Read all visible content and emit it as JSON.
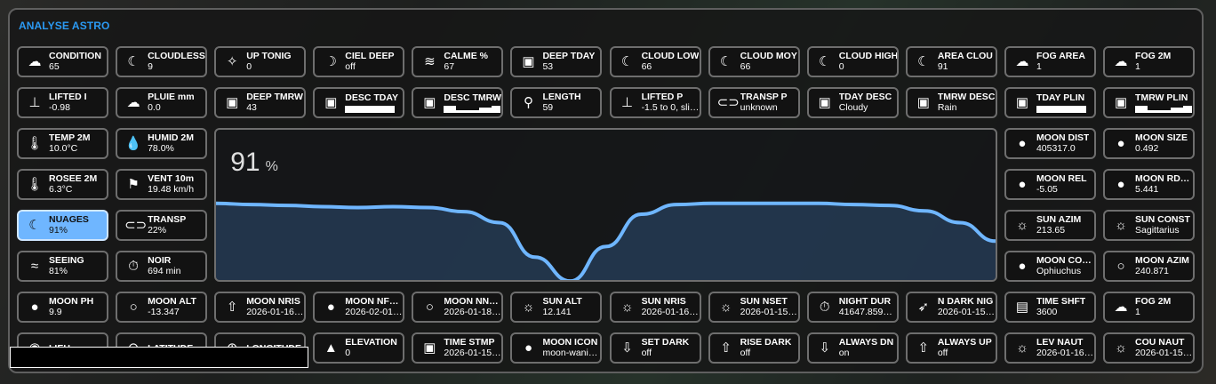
{
  "card": {
    "title": "ANALYSE ASTRO"
  },
  "colors": {
    "accent": "#2b9af3",
    "active_tile": "#6fb6ff",
    "line": "#6fb6ff"
  },
  "tiles": [
    {
      "label": "CONDITION",
      "value": "65",
      "icon": "cloud-snow-icon"
    },
    {
      "label": "CLOUDLESS",
      "value": "9",
      "icon": "night-cloud-icon"
    },
    {
      "label": "UP TONIG",
      "value": "0",
      "icon": "sparkles-icon"
    },
    {
      "label": "CIEL DEEP",
      "value": "off",
      "icon": "moon-stars-icon"
    },
    {
      "label": "CALME %",
      "value": "67",
      "icon": "wind-icon"
    },
    {
      "label": "DEEP TDAY",
      "value": "53",
      "icon": "calendar-star-icon"
    },
    {
      "label": "CLOUD LOW",
      "value": "66",
      "icon": "night-cloud-icon"
    },
    {
      "label": "CLOUD MOY",
      "value": "66",
      "icon": "night-cloud-icon"
    },
    {
      "label": "CLOUD HIGH",
      "value": "0",
      "icon": "night-cloud-icon"
    },
    {
      "label": "AREA CLOU",
      "value": "91",
      "icon": "night-cloud-icon"
    },
    {
      "label": "FOG AREA",
      "value": "1",
      "icon": "fog-icon"
    },
    {
      "label": "FOG 2M",
      "value": "1",
      "icon": "fog-icon"
    },
    {
      "label": "LIFTED I",
      "value": "-0.98",
      "icon": "arrow-up-bar-icon"
    },
    {
      "label": "PLUIE mm",
      "value": "0.0",
      "icon": "cloud-snow-icon"
    },
    {
      "label": "DEEP TMRW",
      "value": "43",
      "icon": "calendar-star-icon"
    },
    {
      "label": "DESC TDAY",
      "value": "",
      "icon": "calendar-star-icon",
      "timeline": "full"
    },
    {
      "label": "DESC TMRW",
      "value": "",
      "icon": "calendar-star-icon",
      "timeline": "mixed"
    },
    {
      "label": "LENGTH",
      "value": "59",
      "icon": "map-marker-path-icon"
    },
    {
      "label": "LIFTED P",
      "value": "-1.5 to 0, sli…",
      "icon": "arrow-up-bar-icon"
    },
    {
      "label": "TRANSP P",
      "value": "unknown",
      "icon": "goggles-icon"
    },
    {
      "label": "TDAY DESC",
      "value": "Cloudy",
      "icon": "calendar-star-icon"
    },
    {
      "label": "TMRW DESC",
      "value": "Rain",
      "icon": "calendar-star-icon"
    },
    {
      "label": "TDAY PLIN",
      "value": "",
      "icon": "calendar-star-icon",
      "timeline": "full"
    },
    {
      "label": "TMRW PLIN",
      "value": "",
      "icon": "calendar-star-icon",
      "timeline": "mixed"
    },
    {
      "label": "TEMP 2M",
      "value": "10.0°C",
      "icon": "thermometer-icon"
    },
    {
      "label": "HUMID 2M",
      "value": "78.0%",
      "icon": "water-percent-icon"
    },
    {
      "label": "MOON DIST",
      "value": "405317.0",
      "icon": "moon-full-icon"
    },
    {
      "label": "MOON SIZE",
      "value": "0.492",
      "icon": "moon-full-icon"
    },
    {
      "label": "ROSEE 2M",
      "value": "6.3°C",
      "icon": "thermometer-icon"
    },
    {
      "label": "VENT 10m",
      "value": "19.48 km/h",
      "icon": "windsock-icon"
    },
    {
      "label": "MOON REL",
      "value": "-5.05",
      "icon": "moon-full-icon"
    },
    {
      "label": "MOON RD…",
      "value": "5.441",
      "icon": "moon-full-icon"
    },
    {
      "label": "NUAGES",
      "value": "91%",
      "icon": "night-cloud-icon",
      "active": true
    },
    {
      "label": "TRANSP",
      "value": "22%",
      "icon": "goggles-icon"
    },
    {
      "label": "SUN AZIM",
      "value": "213.65",
      "icon": "sun-icon"
    },
    {
      "label": "SUN CONST",
      "value": "Sagittarius",
      "icon": "sun-icon"
    },
    {
      "label": "SEEING",
      "value": "81%",
      "icon": "waves-icon"
    },
    {
      "label": "NOIR",
      "value": "694 min",
      "icon": "timer-play-icon"
    },
    {
      "label": "MOON CO…",
      "value": "Ophiuchus",
      "icon": "moon-full-icon"
    },
    {
      "label": "MOON AZIM",
      "value": "240.871",
      "icon": "moon-new-icon"
    },
    {
      "label": "MOON PH",
      "value": "9.9",
      "icon": "moon-waning-icon"
    },
    {
      "label": "MOON ALT",
      "value": "-13.347",
      "icon": "moon-new-icon"
    },
    {
      "label": "MOON NRIS",
      "value": "2026-01-16…",
      "icon": "arrow-up-circle-icon"
    },
    {
      "label": "MOON NF…",
      "value": "2026-02-01…",
      "icon": "moon-full-icon"
    },
    {
      "label": "MOON NN…",
      "value": "2026-01-18…",
      "icon": "moon-new-icon"
    },
    {
      "label": "SUN ALT",
      "value": "12.141",
      "icon": "sun-icon"
    },
    {
      "label": "SUN NRIS",
      "value": "2026-01-16…",
      "icon": "sunrise-icon"
    },
    {
      "label": "SUN NSET",
      "value": "2026-01-15…",
      "icon": "sunset-icon"
    },
    {
      "label": "NIGHT DUR",
      "value": "41647.859…",
      "icon": "timer-play-icon"
    },
    {
      "label": "N DARK NIG",
      "value": "2026-01-15…",
      "icon": "rocket-icon"
    },
    {
      "label": "TIME SHFT",
      "value": "3600",
      "icon": "map-clock-icon"
    },
    {
      "label": "FOG 2M",
      "value": "1",
      "icon": "fog-icon"
    },
    {
      "label": "LIEU",
      "value": "",
      "icon": "map-marker-icon"
    },
    {
      "label": "LATITUDE",
      "value": "",
      "icon": "latitude-icon"
    },
    {
      "label": "LONGITUDE",
      "value": "",
      "icon": "longitude-icon"
    },
    {
      "label": "ELEVATION",
      "value": "0",
      "icon": "mountains-icon"
    },
    {
      "label": "TIME STMP",
      "value": "2026-01-15…",
      "icon": "calendar-icon"
    },
    {
      "label": "MOON ICON",
      "value": "moon-wani…",
      "icon": "moon-waning-icon"
    },
    {
      "label": "SET DARK",
      "value": "off",
      "icon": "arrow-down-circle-icon"
    },
    {
      "label": "RISE DARK",
      "value": "off",
      "icon": "arrow-up-circle-icon"
    },
    {
      "label": "ALWAYS DN",
      "value": "on",
      "icon": "arrow-down-circle-icon"
    },
    {
      "label": "ALWAYS UP",
      "value": "off",
      "icon": "arrow-up-circle-icon"
    },
    {
      "label": "LEV NAUT",
      "value": "2026-01-16…",
      "icon": "sunrise-icon"
    },
    {
      "label": "COU NAUT",
      "value": "2026-01-15…",
      "icon": "sunset-icon"
    }
  ],
  "chart": {
    "current_value": "91",
    "unit": "%"
  },
  "chart_data": {
    "type": "area",
    "title": "",
    "xlabel": "",
    "ylabel": "",
    "grid": false,
    "series": [
      {
        "values": [
          100,
          99.7,
          99.5,
          99.2,
          99,
          99.2,
          99,
          98,
          95.4,
          87.2,
          81.5,
          89.7,
          97.4,
          99.7,
          100,
          100,
          100,
          100,
          99.7,
          99.5,
          98.2,
          95.4,
          91
        ]
      }
    ]
  }
}
